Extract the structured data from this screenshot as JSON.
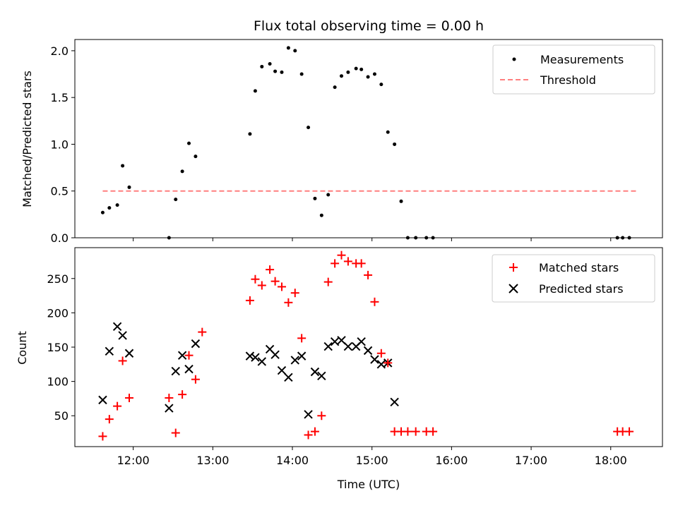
{
  "chart_data": [
    {
      "type": "scatter",
      "title": "Flux total observing time = 0.00 h",
      "xlabel": "",
      "ylabel": "Matched/Predicted stars",
      "ylim": [
        0,
        2.12
      ],
      "yticks": [
        "0.0",
        "0.5",
        "1.0",
        "1.5",
        "2.0"
      ],
      "xlim": [
        "11:16",
        "18:39"
      ],
      "legend": {
        "placement": "top-right",
        "entries": [
          "Measurements",
          "Threshold"
        ]
      },
      "colors": {
        "measurements": "#000000",
        "threshold": "#ff7f7f"
      },
      "series": [
        {
          "name": "Measurements",
          "marker": "dot",
          "x": [
            "11:37",
            "11:42",
            "11:48",
            "11:52",
            "11:57",
            "12:27",
            "12:32",
            "12:37",
            "12:42",
            "12:47",
            "13:28",
            "13:32",
            "13:37",
            "13:43",
            "13:47",
            "13:52",
            "13:57",
            "14:02",
            "14:07",
            "14:12",
            "14:17",
            "14:22",
            "14:27",
            "14:32",
            "14:37",
            "14:42",
            "14:48",
            "14:52",
            "14:57",
            "15:02",
            "15:07",
            "15:12",
            "15:17",
            "15:22",
            "15:27",
            "15:33",
            "15:41",
            "15:46",
            "18:05",
            "18:09",
            "18:14"
          ],
          "y": [
            0.27,
            0.32,
            0.35,
            0.77,
            0.54,
            0.0,
            0.41,
            0.71,
            1.01,
            0.87,
            1.11,
            1.57,
            1.83,
            1.86,
            1.78,
            1.77,
            2.03,
            2.0,
            1.75,
            1.18,
            0.42,
            0.24,
            0.46,
            1.61,
            1.73,
            1.77,
            1.81,
            1.8,
            1.72,
            1.75,
            1.64,
            1.13,
            1.0,
            0.39,
            0.0,
            0.0,
            0.0,
            0.0,
            0.0,
            0.0,
            0.0
          ]
        },
        {
          "name": "Threshold",
          "marker": "dashed-line",
          "x": [
            "11:37",
            "18:20"
          ],
          "y": [
            0.5,
            0.5
          ]
        }
      ]
    },
    {
      "type": "scatter",
      "title": "",
      "xlabel": "Time (UTC)",
      "ylabel": "Count",
      "ylim": [
        5,
        295
      ],
      "yticks": [
        "50",
        "100",
        "150",
        "200",
        "250"
      ],
      "xlim": [
        "11:16",
        "18:39"
      ],
      "xticks": [
        "12:00",
        "13:00",
        "14:00",
        "15:00",
        "16:00",
        "17:00",
        "18:00"
      ],
      "legend": {
        "placement": "top-right",
        "entries": [
          "Matched stars",
          "Predicted stars"
        ]
      },
      "colors": {
        "matched": "#ff0000",
        "predicted": "#000000"
      },
      "series": [
        {
          "name": "Matched stars",
          "marker": "plus",
          "x": [
            "11:37",
            "11:42",
            "11:48",
            "11:52",
            "11:57",
            "12:27",
            "12:32",
            "12:37",
            "12:42",
            "12:47",
            "12:52",
            "13:28",
            "13:32",
            "13:37",
            "13:43",
            "13:47",
            "13:52",
            "13:57",
            "14:02",
            "14:07",
            "14:12",
            "14:17",
            "14:22",
            "14:27",
            "14:32",
            "14:37",
            "14:42",
            "14:48",
            "14:52",
            "14:57",
            "15:02",
            "15:07",
            "15:12",
            "15:17",
            "15:22",
            "15:27",
            "15:33",
            "15:41",
            "15:46",
            "18:05",
            "18:09",
            "18:14"
          ],
          "y": [
            20,
            45,
            64,
            130,
            76,
            76,
            25,
            81,
            138,
            103,
            172,
            218,
            249,
            240,
            263,
            246,
            238,
            215,
            229,
            163,
            22,
            27,
            50,
            245,
            272,
            284,
            275,
            272,
            272,
            255,
            216,
            141,
            127,
            27,
            27,
            27,
            27,
            27,
            27,
            27,
            27,
            27
          ]
        },
        {
          "name": "Predicted stars",
          "marker": "x",
          "x": [
            "11:37",
            "11:42",
            "11:48",
            "11:52",
            "11:57",
            "12:27",
            "12:32",
            "12:37",
            "12:42",
            "12:47",
            "13:28",
            "13:32",
            "13:37",
            "13:43",
            "13:47",
            "13:52",
            "13:57",
            "14:02",
            "14:07",
            "14:12",
            "14:17",
            "14:22",
            "14:27",
            "14:32",
            "14:37",
            "14:42",
            "14:48",
            "14:52",
            "14:57",
            "15:02",
            "15:07",
            "15:12",
            "15:17"
          ],
          "y": [
            73,
            144,
            180,
            167,
            141,
            61,
            115,
            138,
            118,
            155,
            137,
            135,
            129,
            147,
            139,
            116,
            106,
            131,
            137,
            52,
            114,
            108,
            151,
            158,
            160,
            151,
            151,
            158,
            145,
            132,
            125,
            127,
            70
          ]
        }
      ]
    }
  ]
}
